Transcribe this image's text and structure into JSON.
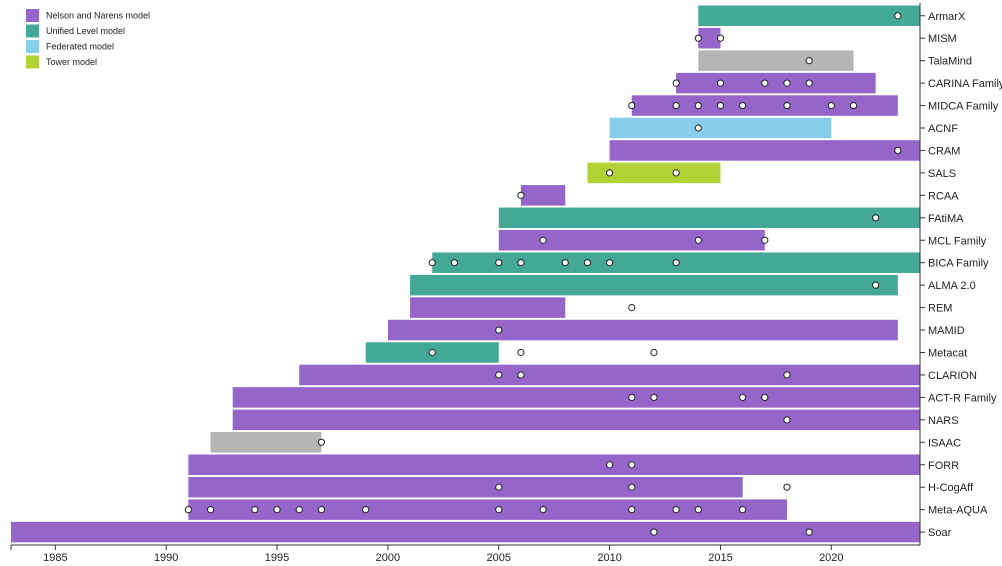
{
  "chart_data": {
    "type": "timeline-bar",
    "title": "",
    "xlabel": "",
    "ylabel": "",
    "xlim": [
      1983,
      2024
    ],
    "x_ticks": [
      1985,
      1990,
      1995,
      2000,
      2005,
      2010,
      2015,
      2020
    ],
    "legend_position": "top-left",
    "legend": [
      {
        "key": "nelson",
        "label": "Nelson and Narens model",
        "color": "#9565c9"
      },
      {
        "key": "unified",
        "label": "Unified Level model",
        "color": "#43a895"
      },
      {
        "key": "federated",
        "label": "Federated model",
        "color": "#87ceeb"
      },
      {
        "key": "tower",
        "label": "Tower model",
        "color": "#b2d235"
      }
    ],
    "other_color": "#b5b5b5",
    "rows": [
      {
        "label": "ArmarX",
        "model": "unified",
        "start": 2014,
        "end": 2024,
        "points": [
          2023
        ]
      },
      {
        "label": "MISM",
        "model": "nelson",
        "start": 2014,
        "end": 2015,
        "points": [
          2014,
          2015
        ]
      },
      {
        "label": "TalaMind",
        "model": "other",
        "start": 2014,
        "end": 2021,
        "points": [
          2019
        ]
      },
      {
        "label": "CARINA Family",
        "model": "nelson",
        "start": 2013,
        "end": 2022,
        "points": [
          2013,
          2015,
          2017,
          2018,
          2019
        ]
      },
      {
        "label": "MIDCA Family",
        "model": "nelson",
        "start": 2011,
        "end": 2023,
        "points": [
          2011,
          2013,
          2014,
          2015,
          2016,
          2018,
          2020,
          2021
        ]
      },
      {
        "label": "ACNF",
        "model": "federated",
        "start": 2010,
        "end": 2020,
        "points": [
          2014
        ]
      },
      {
        "label": "CRAM",
        "model": "nelson",
        "start": 2010,
        "end": 2024,
        "points": [
          2023
        ]
      },
      {
        "label": "SALS",
        "model": "tower",
        "start": 2009,
        "end": 2015,
        "points": [
          2010,
          2013
        ]
      },
      {
        "label": "RCAA",
        "model": "nelson",
        "start": 2006,
        "end": 2008,
        "points": [
          2006
        ]
      },
      {
        "label": "FAtiMA",
        "model": "unified",
        "start": 2005,
        "end": 2024,
        "points": [
          2022
        ]
      },
      {
        "label": "MCL Family",
        "model": "nelson",
        "start": 2005,
        "end": 2017,
        "points": [
          2007,
          2014,
          2017
        ]
      },
      {
        "label": "BICA Family",
        "model": "unified",
        "start": 2002,
        "end": 2024,
        "points": [
          2002,
          2003,
          2005,
          2006,
          2008,
          2009,
          2010,
          2013
        ]
      },
      {
        "label": "ALMA 2.0",
        "model": "unified",
        "start": 2001,
        "end": 2023,
        "points": [
          2022
        ]
      },
      {
        "label": "REM",
        "model": "nelson",
        "start": 2001,
        "end": 2008,
        "points": [
          2011
        ]
      },
      {
        "label": "MAMID",
        "model": "nelson",
        "start": 2000,
        "end": 2023,
        "points": [
          2005
        ]
      },
      {
        "label": "Metacat",
        "model": "unified",
        "start": 1999,
        "end": 2005,
        "points": [
          2002,
          2006,
          2012
        ]
      },
      {
        "label": "CLARION",
        "model": "nelson",
        "start": 1996,
        "end": 2024,
        "points": [
          2005,
          2006,
          2018
        ]
      },
      {
        "label": "ACT-R Family",
        "model": "nelson",
        "start": 1993,
        "end": 2024,
        "points": [
          2011,
          2012,
          2016,
          2017
        ]
      },
      {
        "label": "NARS",
        "model": "nelson",
        "start": 1993,
        "end": 2024,
        "points": [
          2018
        ]
      },
      {
        "label": "ISAAC",
        "model": "other",
        "start": 1992,
        "end": 1997,
        "points": [
          1997
        ]
      },
      {
        "label": "FORR",
        "model": "nelson",
        "start": 1991,
        "end": 2024,
        "points": [
          2010,
          2011
        ]
      },
      {
        "label": "H-CogAff",
        "model": "nelson",
        "start": 1991,
        "end": 2016,
        "points": [
          2005,
          2011,
          2018
        ]
      },
      {
        "label": "Meta-AQUA",
        "model": "nelson",
        "start": 1991,
        "end": 2018,
        "points": [
          1991,
          1992,
          1994,
          1995,
          1996,
          1997,
          1999,
          2005,
          2007,
          2011,
          2013,
          2014,
          2016
        ]
      },
      {
        "label": "Soar",
        "model": "nelson",
        "start": 1983,
        "end": 2024,
        "points": [
          2012,
          2019
        ]
      }
    ]
  }
}
